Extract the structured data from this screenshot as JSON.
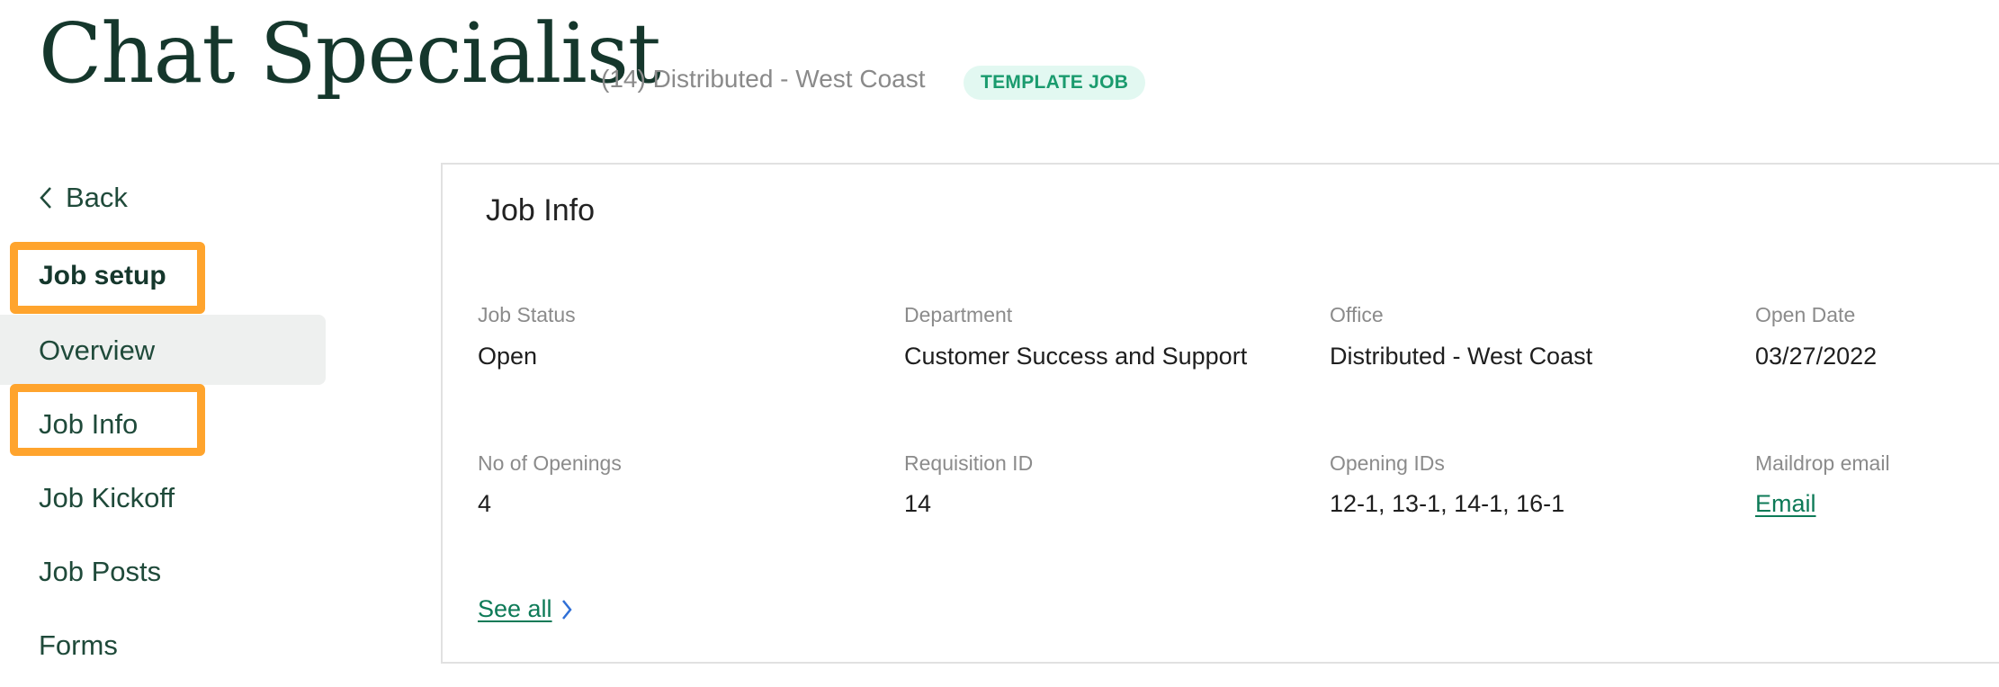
{
  "header": {
    "title": "Chat Specialist",
    "subtitle": "(14)  Distributed - West Coast",
    "badge": "TEMPLATE JOB"
  },
  "sidebar": {
    "back": "Back",
    "section": "Job setup",
    "items": [
      {
        "label": "Overview"
      },
      {
        "label": "Job Info"
      },
      {
        "label": "Job Kickoff"
      },
      {
        "label": "Job Posts"
      },
      {
        "label": "Forms"
      }
    ]
  },
  "card": {
    "title": "Job Info",
    "fields": [
      {
        "label": "Job Status",
        "value": "Open"
      },
      {
        "label": "Department",
        "value": "Customer Success and Support"
      },
      {
        "label": "Office",
        "value": "Distributed - West Coast"
      },
      {
        "label": "Open Date",
        "value": "03/27/2022"
      },
      {
        "label": "No of Openings",
        "value": "4"
      },
      {
        "label": "Requisition ID",
        "value": "14"
      },
      {
        "label": "Opening IDs",
        "value": "12-1, 13-1, 14-1, 16-1"
      },
      {
        "label": "Maildrop email",
        "value": "Email"
      }
    ],
    "see_all": "See all"
  },
  "colors": {
    "highlight": "#ffa42d",
    "brand": "#15372c",
    "link": "#0d7a57"
  }
}
